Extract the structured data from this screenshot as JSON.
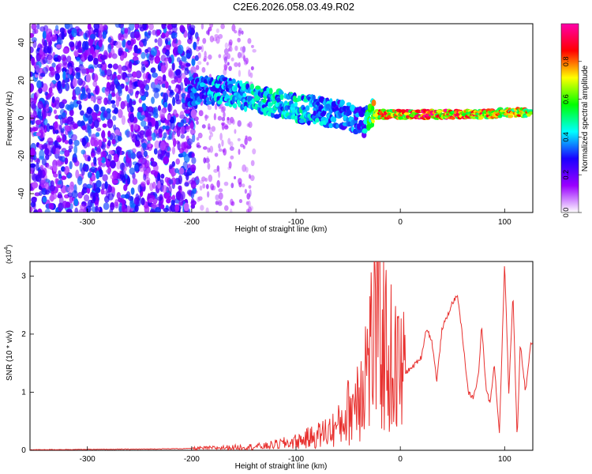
{
  "title": "C2E6.2026.058.03.49.R02",
  "chart_data": [
    {
      "type": "heatmap",
      "xlabel": "Height of straight line (km)",
      "ylabel": "Frequency (Hz)",
      "xlim": [
        -355,
        127
      ],
      "ylim": [
        -50,
        50
      ],
      "xticks": [
        -300,
        -200,
        -100,
        0,
        100
      ],
      "yticks": [
        -40,
        -20,
        0,
        20,
        40
      ],
      "colorbar": {
        "label": "Normalized spectral amplitude",
        "range": [
          0,
          1
        ],
        "ticks": [
          "0.0",
          "0.2",
          "0.4",
          "0.6",
          "0.8"
        ],
        "colors": [
          "#ffffff",
          "#9a00ff",
          "#1a00ff",
          "#00ffff",
          "#00ff00",
          "#ffff00",
          "#ff0000",
          "#ff00aa"
        ]
      },
      "noise_region_km": [
        -355,
        -195
      ],
      "ridge": {
        "x": [
          -205,
          -190,
          -175,
          -160,
          -140,
          -120,
          -100,
          -80,
          -60,
          -45,
          -35,
          -30,
          -20,
          0,
          20,
          50,
          80,
          100,
          125
        ],
        "y": [
          14,
          15,
          15,
          13,
          11,
          8,
          5,
          4,
          2,
          0,
          -2,
          2,
          2,
          2,
          2,
          2,
          2,
          3,
          3
        ],
        "amplitude": [
          0.35,
          0.4,
          0.45,
          0.45,
          0.5,
          0.5,
          0.5,
          0.45,
          0.4,
          0.4,
          0.35,
          0.7,
          0.85,
          0.9,
          0.95,
          0.95,
          0.9,
          0.85,
          0.8
        ]
      }
    },
    {
      "type": "line",
      "xlabel": "Height of straight line (km)",
      "ylabel": "SNR (10 * v/v)",
      "exponent_label": "(x10",
      "exponent": "4",
      "exponent_close": ")",
      "xlim": [
        -355,
        127
      ],
      "ylim": [
        0,
        3.25
      ],
      "xticks": [
        -300,
        -200,
        -100,
        0,
        100
      ],
      "yticks": [
        0,
        1,
        2,
        3
      ],
      "line_color": "#e8312f",
      "x": [
        -355,
        -250,
        -200,
        -160,
        -130,
        -100,
        -80,
        -60,
        -45,
        -30,
        -22,
        -15,
        -8,
        0,
        10,
        20,
        25,
        30,
        35,
        40,
        45,
        50,
        55,
        60,
        65,
        70,
        75,
        78,
        82,
        86,
        90,
        95,
        100,
        104,
        108,
        112,
        115,
        120,
        125
      ],
      "y": [
        0.01,
        0.02,
        0.03,
        0.05,
        0.07,
        0.15,
        0.25,
        0.4,
        0.8,
        1.6,
        2.3,
        1.8,
        1.5,
        1.3,
        1.4,
        1.6,
        2.1,
        1.9,
        1.2,
        2.1,
        2.3,
        2.55,
        2.65,
        1.9,
        1.0,
        0.9,
        1.3,
        2.15,
        1.1,
        0.8,
        1.5,
        0.3,
        3.25,
        1.0,
        2.7,
        0.2,
        1.85,
        1.0,
        1.85
      ]
    }
  ]
}
